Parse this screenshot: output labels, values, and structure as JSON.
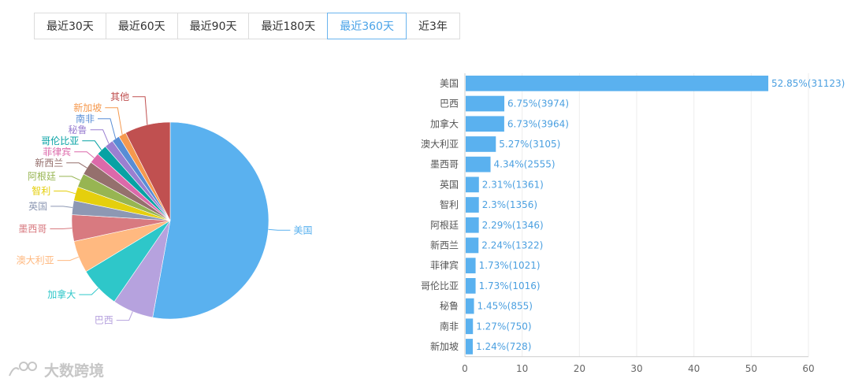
{
  "tabs": [
    {
      "label": "最近30天",
      "active": false
    },
    {
      "label": "最近60天",
      "active": false
    },
    {
      "label": "最近90天",
      "active": false
    },
    {
      "label": "最近180天",
      "active": false
    },
    {
      "label": "最近360天",
      "active": true
    },
    {
      "label": "近3年",
      "active": false
    }
  ],
  "watermark": "大数跨境",
  "chart_data": [
    {
      "type": "pie",
      "labels": [
        "美国",
        "巴西",
        "加拿大",
        "澳大利亚",
        "墨西哥",
        "英国",
        "智利",
        "阿根廷",
        "新西兰",
        "菲律宾",
        "哥伦比亚",
        "秘鲁",
        "南非",
        "新加坡",
        "其他"
      ],
      "values": [
        31123,
        3974,
        3964,
        3105,
        2555,
        1361,
        1356,
        1346,
        1322,
        1021,
        1016,
        855,
        750,
        728,
        4405
      ],
      "colors": [
        "#5ab1ef",
        "#b6a2de",
        "#2ec7c9",
        "#ffb980",
        "#d87a80",
        "#8d98b3",
        "#e5cf0d",
        "#97b552",
        "#95706d",
        "#dc69aa",
        "#07a2a4",
        "#9a7fd1",
        "#588dd5",
        "#f5994e",
        "#c05050"
      ]
    },
    {
      "type": "bar",
      "orientation": "horizontal",
      "categories": [
        "美国",
        "巴西",
        "加拿大",
        "澳大利亚",
        "墨西哥",
        "英国",
        "智利",
        "阿根廷",
        "新西兰",
        "菲律宾",
        "哥伦比亚",
        "秘鲁",
        "南非",
        "新加坡"
      ],
      "values": [
        52.85,
        6.75,
        6.73,
        5.27,
        4.34,
        2.31,
        2.3,
        2.29,
        2.24,
        1.73,
        1.73,
        1.45,
        1.27,
        1.24
      ],
      "data_labels": [
        "52.85%(31123)",
        "6.75%(3974)",
        "6.73%(3964)",
        "5.27%(3105)",
        "4.34%(2555)",
        "2.31%(1361)",
        "2.3%(1356)",
        "2.29%(1346)",
        "2.24%(1322)",
        "1.73%(1021)",
        "1.73%(1016)",
        "1.45%(855)",
        "1.27%(750)",
        "1.24%(728)"
      ],
      "xlim": [
        0,
        60
      ],
      "xticks": [
        0,
        10,
        20,
        30,
        40,
        50,
        60
      ],
      "grid": true,
      "bar_color": "#5ab1ef"
    }
  ]
}
